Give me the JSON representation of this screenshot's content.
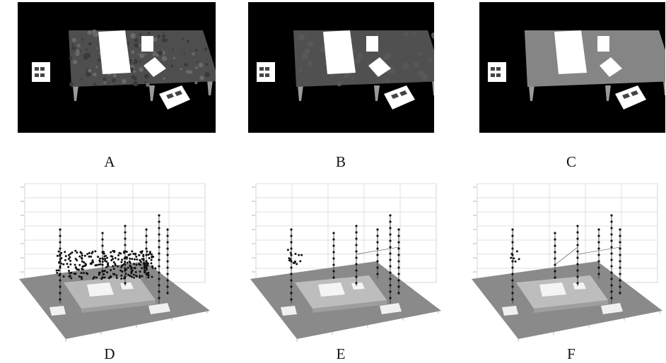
{
  "figure": {
    "panels": [
      {
        "id": "A",
        "label": "A",
        "kind": "scene",
        "table_texture": "noisy"
      },
      {
        "id": "B",
        "label": "B",
        "kind": "scene",
        "table_texture": "smoothed"
      },
      {
        "id": "C",
        "label": "C",
        "kind": "scene",
        "table_texture": "flat"
      },
      {
        "id": "D",
        "label": "D",
        "kind": "plot",
        "stage": "noisy"
      },
      {
        "id": "E",
        "label": "E",
        "kind": "plot",
        "stage": "partial"
      },
      {
        "id": "F",
        "label": "F",
        "kind": "plot",
        "stage": "clean"
      }
    ],
    "colors": {
      "scene_bg": "#000000",
      "table_noisy": "#4e4e4e",
      "table_smoothed": "#505050",
      "table_flat": "#858585",
      "paper": "#ffffff",
      "floor": "#8a8a8a",
      "grid": "#d4d4d4"
    }
  }
}
